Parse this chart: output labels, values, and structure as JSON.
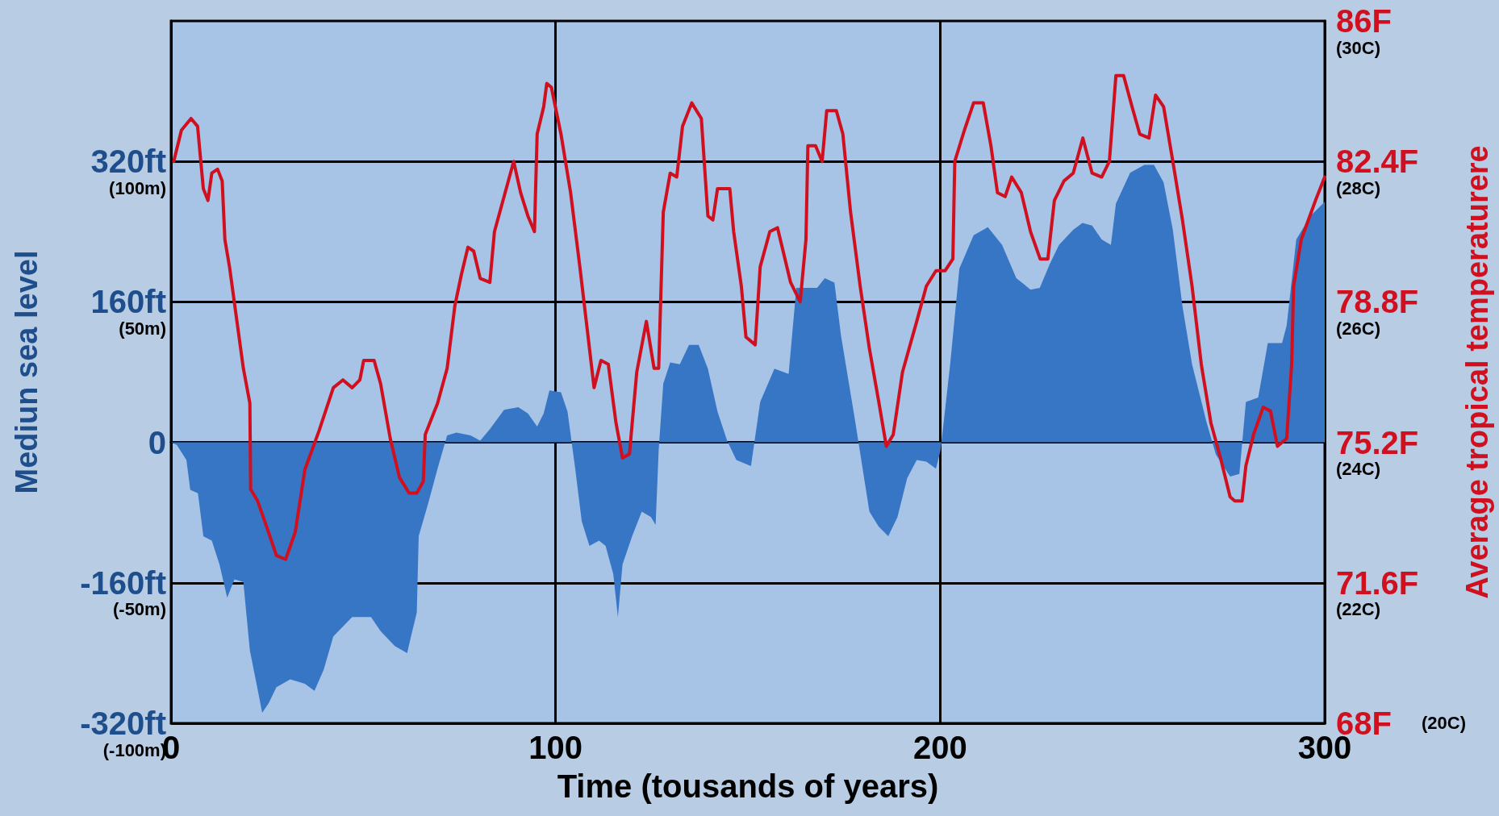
{
  "chart_data": {
    "type": "area",
    "xlabel": "Time (tousands of years)",
    "ylabel": "Mediun sea level",
    "y2label": "Average tropical temperaturere",
    "xlim": [
      0,
      300
    ],
    "xticks": [
      0,
      100,
      200,
      300
    ],
    "ylim": [
      -320,
      480
    ],
    "yticks": [
      {
        "value": -320,
        "label": "-320ft"
      },
      {
        "value": -160,
        "label": "-160ft"
      },
      0,
      {
        "value": 160,
        "label": "160ft"
      },
      {
        "value": 320,
        "label": "320ft"
      }
    ],
    "y2lim": [
      68,
      86
    ],
    "y2ticks": [
      {
        "value": 68,
        "label": "68F"
      },
      {
        "value": 71.6,
        "label": "71.6F"
      },
      {
        "value": 75.2,
        "label": "75.2F"
      },
      {
        "value": 78.8,
        "label": "78.8F"
      },
      {
        "value": 82.4,
        "label": "82.4F"
      },
      {
        "value": 86,
        "label": "86F"
      }
    ],
    "annotations": [
      "(20C)",
      "(22C)",
      "(24C)",
      "(26C)",
      "(28C)",
      "(30C)",
      "(-100m)",
      "(-50m)",
      "(50m)",
      "(100m)"
    ],
    "grid": true,
    "marker": "none",
    "line_style": "solid",
    "series": [
      {
        "color": "#3775c5",
        "x": [
          0,
          1.5,
          4,
          5,
          7,
          8.4,
          10.6,
          12.6,
          14.6,
          16.5,
          18.8,
          20.5,
          22.5,
          23.7,
          25.4,
          27.4,
          31,
          34.8,
          37.3,
          39.7,
          42.2,
          47.1,
          52,
          54.5,
          58.2,
          61.4,
          62.4,
          63.9,
          64.4,
          66.9,
          69.3,
          71.8,
          74.2,
          77.9,
          80.4,
          82.9,
          86.6,
          90.3,
          92.8,
          95.2,
          96.9,
          98.4,
          101.4,
          103.1,
          105.1,
          106.8,
          108.8,
          111.3,
          113,
          115,
          116.2,
          117.4,
          119.9,
          122.4,
          124.8,
          126,
          126.8,
          128,
          129.8,
          132.3,
          134.7,
          137.2,
          139.6,
          142.1,
          144.6,
          147,
          150.8,
          153.2,
          156.9,
          160.6,
          162.6,
          165.6,
          168,
          170,
          172.5,
          174.2,
          177.9,
          181.6,
          184,
          186.5,
          188.9,
          191.4,
          193.9,
          196.4,
          198.9,
          200.1,
          202.6,
          205,
          208.7,
          212.4,
          216.1,
          219.8,
          223.5,
          225.9,
          228.5,
          230.9,
          234.6,
          237,
          239.5,
          242,
          244.4,
          245.7,
          249.4,
          253.1,
          255.6,
          258.1,
          260.5,
          263,
          265.5,
          269.2,
          271.7,
          275.4,
          277.8,
          279.5,
          282.7,
          285.2,
          288.9,
          290.1,
          292.6,
          296.3,
          300
        ],
        "values": [
          0,
          -3,
          -20,
          -54,
          -58,
          -107,
          -112,
          -139,
          -177,
          -156,
          -159,
          -237,
          -281,
          -308,
          -297,
          -279,
          -270,
          -275,
          -283,
          -259,
          -221,
          -199,
          -199,
          -215,
          -232,
          -240,
          -221,
          -194,
          -107,
          -69,
          -30,
          8,
          11,
          8,
          2,
          15,
          37,
          40,
          33,
          18,
          33,
          59,
          57,
          35,
          -30,
          -90,
          -118,
          -112,
          -118,
          -150,
          -199,
          -139,
          -107,
          -79,
          -85,
          -94,
          -9,
          67,
          91,
          89,
          111,
          111,
          84,
          35,
          2,
          -20,
          -27,
          46,
          84,
          78,
          176,
          176,
          176,
          187,
          182,
          122,
          24,
          -79,
          -96,
          -107,
          -85,
          -41,
          -20,
          -22,
          -30,
          -9,
          89,
          198,
          236,
          245,
          225,
          187,
          174,
          176,
          203,
          225,
          242,
          250,
          247,
          231,
          225,
          272,
          307,
          316,
          316,
          296,
          242,
          155,
          89,
          24,
          -14,
          -39,
          -36,
          46,
          51,
          113,
          113,
          133,
          231,
          258,
          274
        ]
      },
      {
        "type": "line",
        "axis": "y2",
        "color": "#d0101e",
        "x": [
          0.7,
          2.7,
          5.2,
          6.9,
          8.4,
          9.6,
          10.6,
          12.1,
          13.3,
          14,
          15.2,
          17,
          18.8,
          20.5,
          20.7,
          22.5,
          25,
          27.4,
          29.8,
          32.3,
          34.8,
          38.5,
          42.2,
          44.7,
          47.1,
          49.1,
          50.1,
          52.8,
          54.5,
          57,
          59.4,
          61.9,
          63.9,
          65.6,
          66.1,
          69.3,
          71.8,
          73.8,
          75.5,
          77.2,
          78.7,
          80.4,
          82.9,
          84.1,
          86.6,
          89.1,
          90.9,
          92.8,
          94.5,
          95.2,
          96.9,
          97.7,
          98.9,
          101.4,
          103.9,
          106.3,
          108.1,
          110,
          111.8,
          113.7,
          115.7,
          117.4,
          119.2,
          121.1,
          123.6,
          125.6,
          126.8,
          128,
          129.8,
          131.5,
          133,
          135.4,
          137.9,
          139.6,
          140.9,
          142.1,
          145.3,
          146.3,
          148.3,
          149.5,
          151.9,
          153.2,
          155.7,
          157.7,
          159.4,
          161.1,
          163.6,
          165.1,
          165.6,
          167.6,
          169.3,
          170.5,
          173,
          174.7,
          176.7,
          179.2,
          181.6,
          184.1,
          186,
          187.8,
          190.2,
          193.9,
          196.4,
          198.9,
          201.3,
          203.3,
          203.8,
          206.3,
          208.7,
          211.2,
          213.2,
          214.9,
          216.9,
          218.6,
          221.1,
          223.5,
          226,
          228,
          229.7,
          232.2,
          234.6,
          237.1,
          239.5,
          242,
          244,
          245.7,
          247.7,
          249.9,
          251.9,
          254.3,
          256,
          258.1,
          260.5,
          263,
          265.5,
          267.9,
          270.4,
          272.9,
          275.4,
          276.6,
          278.5,
          279.5,
          281.5,
          284,
          285.9,
          287.7,
          290.1,
          291.4,
          291.9,
          293.9,
          297.6,
          300
        ],
        "values": [
          82.4,
          83.2,
          83.5,
          83.3,
          81.7,
          81.4,
          82.1,
          82.2,
          81.9,
          80.4,
          79.7,
          78.4,
          77.1,
          76.2,
          74,
          73.7,
          73,
          72.3,
          72.2,
          72.9,
          74.5,
          75.5,
          76.6,
          76.8,
          76.6,
          76.8,
          77.3,
          77.3,
          76.7,
          75.3,
          74.3,
          73.9,
          73.9,
          74.2,
          75.4,
          76.2,
          77.1,
          78.7,
          79.5,
          80.2,
          80.1,
          79.4,
          79.3,
          80.6,
          81.5,
          82.4,
          81.6,
          81,
          80.6,
          83.1,
          83.8,
          84.4,
          84.3,
          83.1,
          81.6,
          79.7,
          78.2,
          76.6,
          77.3,
          77.2,
          75.7,
          74.8,
          74.9,
          77,
          78.3,
          77.1,
          77.1,
          81.1,
          82.1,
          82,
          83.3,
          83.9,
          83.5,
          81,
          80.9,
          81.7,
          81.7,
          80.6,
          79.2,
          77.9,
          77.7,
          79.7,
          80.6,
          80.7,
          80,
          79.3,
          78.8,
          80.4,
          82.8,
          82.8,
          82.4,
          83.7,
          83.7,
          83.1,
          81.1,
          79.2,
          77.6,
          76.2,
          75.1,
          75.4,
          77,
          78.3,
          79.2,
          79.6,
          79.6,
          79.9,
          82.4,
          83.2,
          83.9,
          83.9,
          82.8,
          81.6,
          81.5,
          82,
          81.6,
          80.6,
          79.9,
          79.9,
          81.4,
          81.9,
          82.1,
          83,
          82.1,
          82,
          82.4,
          84.6,
          84.6,
          83.8,
          83.1,
          83,
          84.1,
          83.8,
          82.4,
          80.9,
          79.2,
          77.2,
          75.7,
          74.8,
          73.8,
          73.7,
          73.7,
          74.6,
          75.4,
          76.1,
          76,
          75.1,
          75.3,
          77.2,
          79.2,
          80.4,
          81.4,
          82
        ]
      }
    ]
  }
}
